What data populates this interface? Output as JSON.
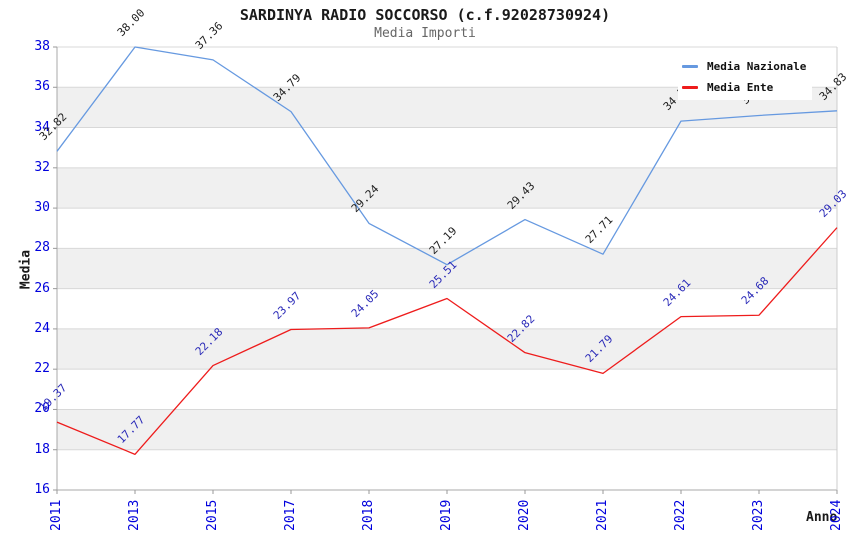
{
  "header": {
    "title": "SARDINYA RADIO SOCCORSO (c.f.92028730924)",
    "subtitle": "Media Importi"
  },
  "legend": {
    "items": [
      {
        "label": "Media Nazionale",
        "color": "#6699e0"
      },
      {
        "label": "Media Ente",
        "color": "#ee1c1c"
      }
    ]
  },
  "axes": {
    "y_title": "Media",
    "x_title": "Anno"
  },
  "chart_data": {
    "type": "line",
    "title": "SARDINYA RADIO SOCCORSO (c.f.92028730924)",
    "subtitle": "Media Importi",
    "xlabel": "Anno",
    "ylabel": "Media",
    "categories": [
      "2011",
      "2013",
      "2015",
      "2017",
      "2018",
      "2019",
      "2020",
      "2021",
      "2022",
      "2023",
      "2024"
    ],
    "series": [
      {
        "name": "Media Nazionale",
        "color": "#6699e0",
        "label_color": "#222222",
        "values": [
          32.82,
          38.0,
          37.36,
          34.79,
          29.24,
          27.19,
          29.43,
          27.71,
          34.32,
          34.6,
          34.83
        ],
        "labels": [
          "32.82",
          "38.00",
          "37.36",
          "34.79",
          "29.24",
          "27.19",
          "29.43",
          "27.71",
          "34.32",
          "34.60",
          "34.83"
        ]
      },
      {
        "name": "Media Ente",
        "color": "#ee1c1c",
        "label_color": "#2a2ab8",
        "values": [
          19.37,
          17.77,
          22.18,
          23.97,
          24.05,
          25.51,
          22.82,
          21.79,
          24.61,
          24.68,
          29.03
        ],
        "labels": [
          "19.37",
          "17.77",
          "22.18",
          "23.97",
          "24.05",
          "25.51",
          "22.82",
          "21.79",
          "24.61",
          "24.68",
          "29.03"
        ]
      }
    ],
    "ylim": [
      16,
      38
    ],
    "ytick_step": 2,
    "grid": "horizontal gridlines with alternating shaded bands",
    "band_colors": [
      "#ffffff",
      "#f0f0f0"
    ],
    "gridline_color": "#d8d8d8",
    "axis_line_color": "#a8a8a8",
    "tick_label_color": "#0000dd",
    "legend_position": "top-right"
  }
}
